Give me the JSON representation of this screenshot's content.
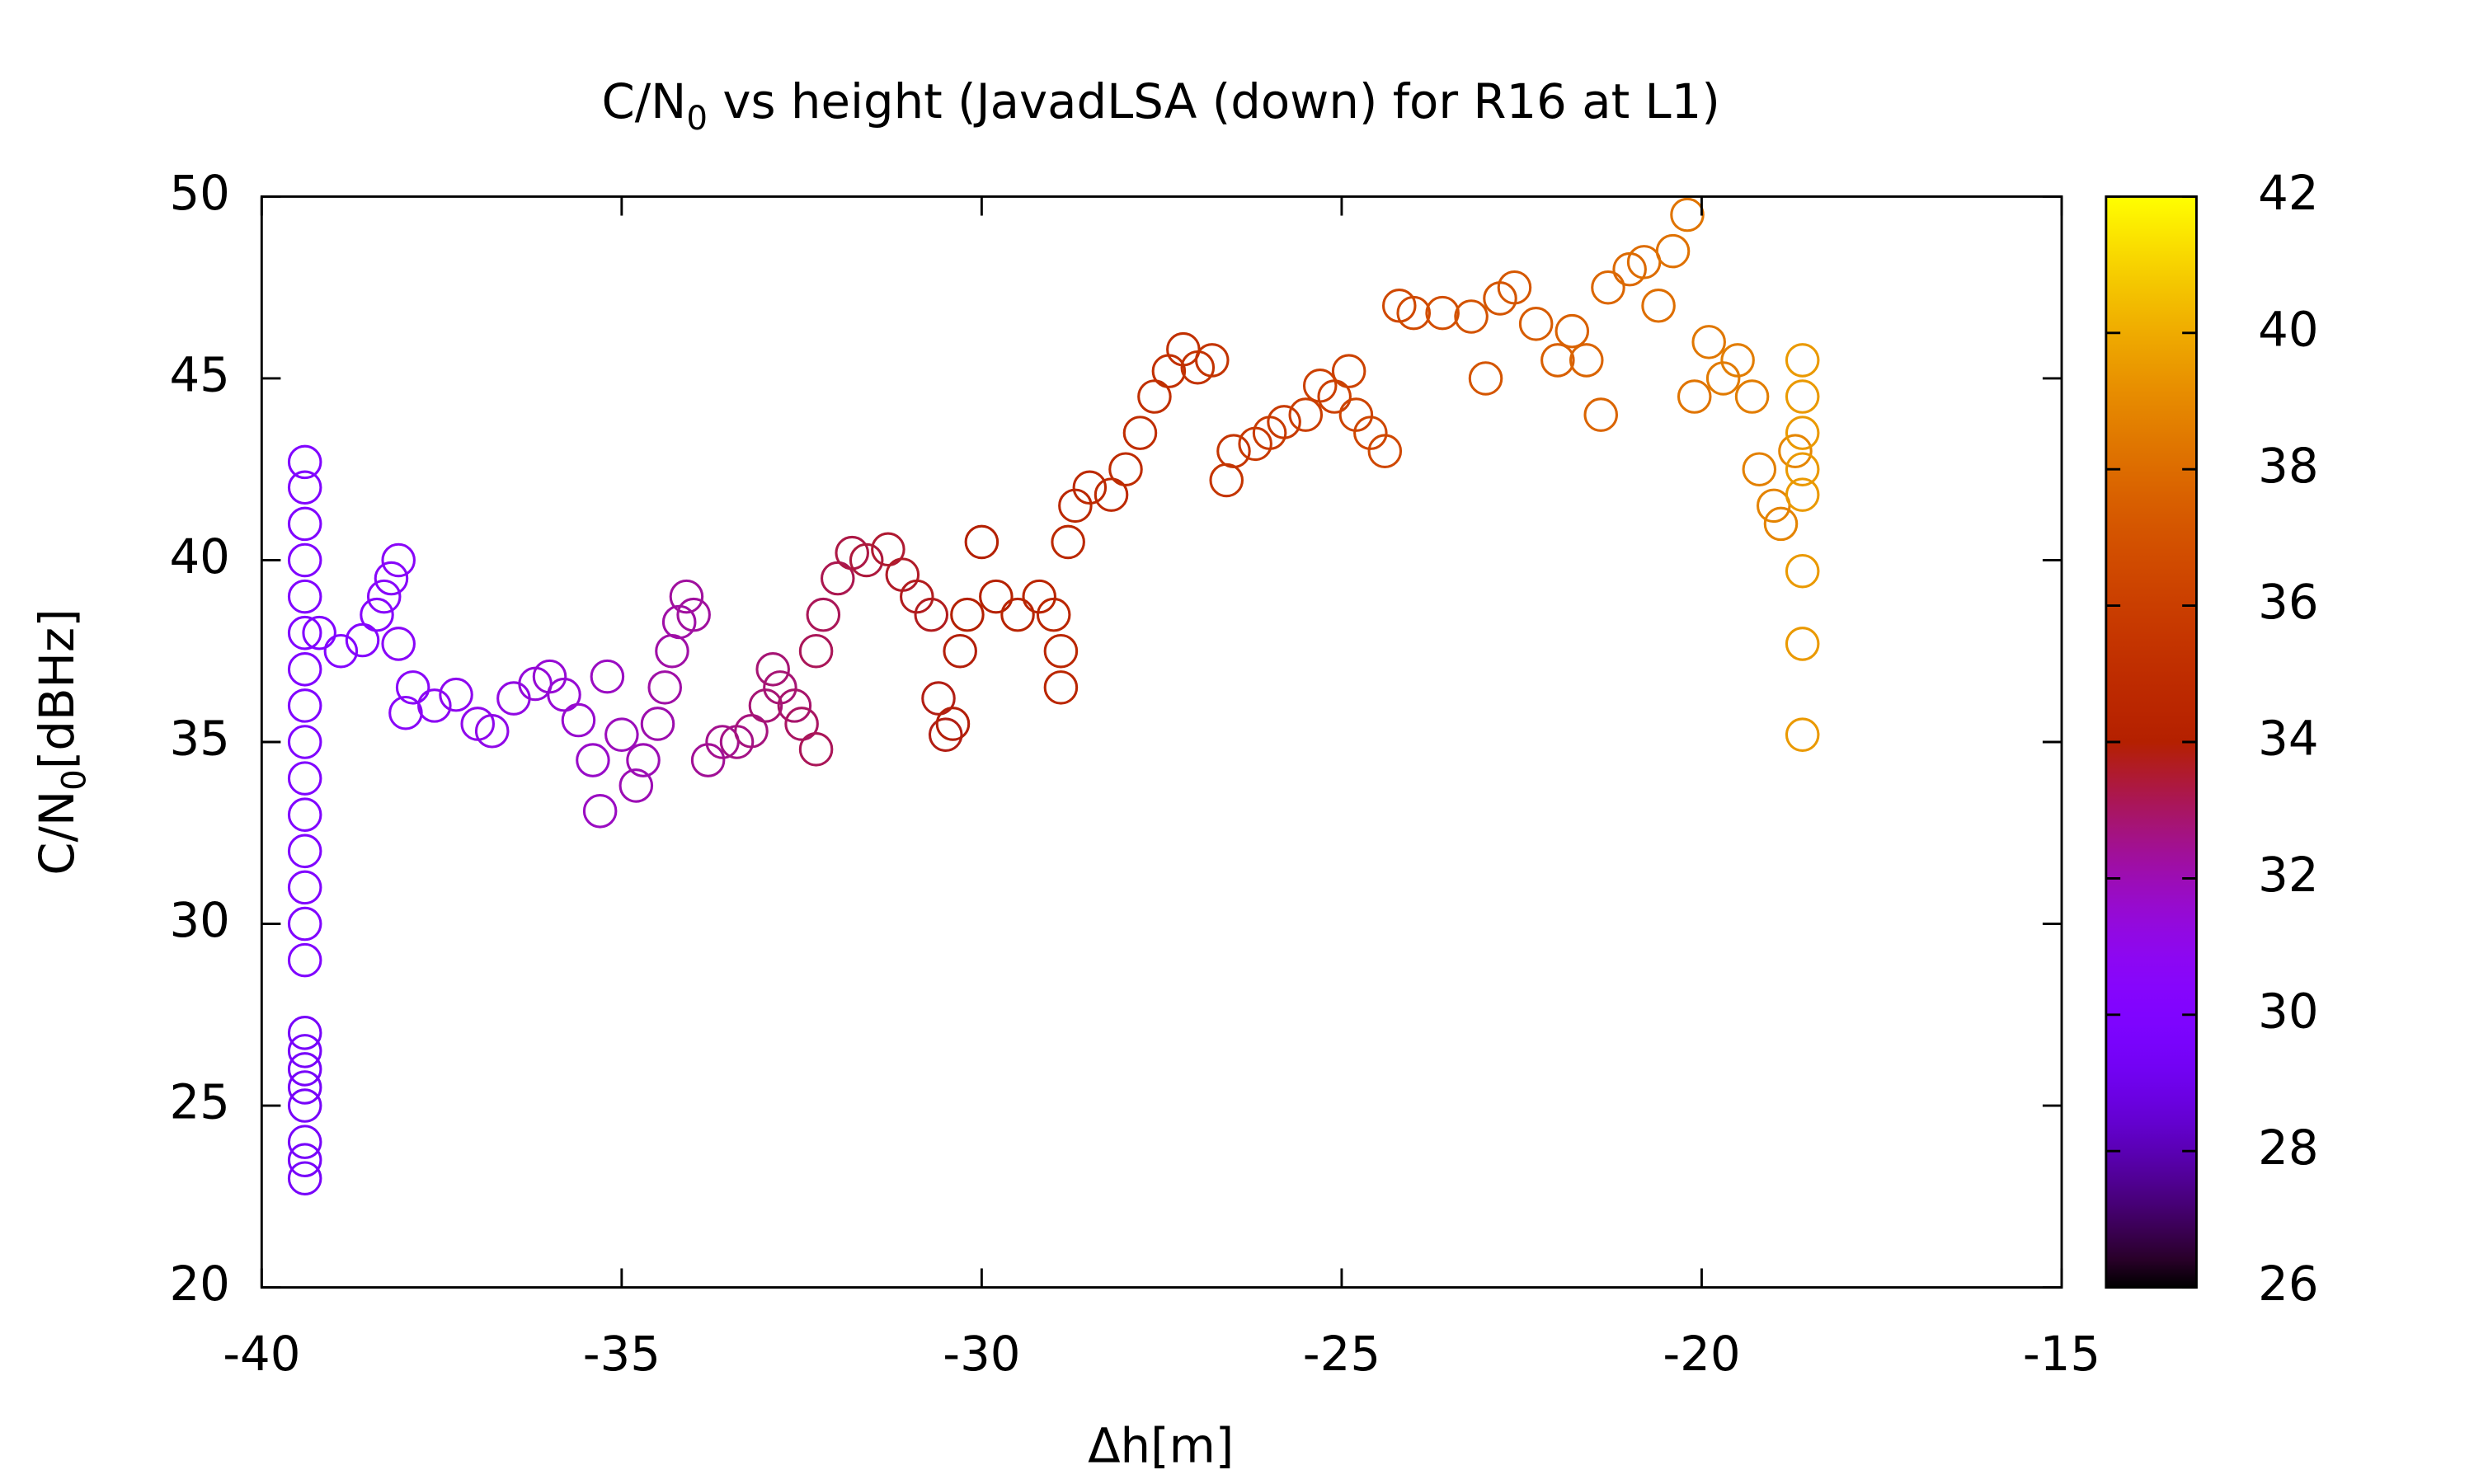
{
  "chart_data": {
    "type": "scatter",
    "title": {
      "main": "C/N",
      "sub": "0",
      "rest": " vs height (JavadLSA (down) for R16 at L1)"
    },
    "y_label": {
      "main": "C/N",
      "sub": "0",
      "rest": "[dBHz]"
    },
    "x_label": "Δh[m]",
    "palette": "gnuplot",
    "marker": "open-circle",
    "xlim": [
      -40,
      -15
    ],
    "xticks": [
      -40,
      -35,
      -30,
      -25,
      -20,
      -15
    ],
    "ylim": [
      20,
      50
    ],
    "yticks": [
      20,
      25,
      30,
      35,
      40,
      45,
      50
    ],
    "cblim": [
      26,
      42
    ],
    "cbticks": [
      26,
      28,
      30,
      32,
      34,
      36,
      38,
      40,
      42
    ],
    "x": [
      -39.4,
      -39.4,
      -39.4,
      -39.4,
      -39.4,
      -39.4,
      -39.4,
      -39.4,
      -39.4,
      -39.4,
      -39.4,
      -39.4,
      -39.4,
      -39.4,
      -39.4,
      -39.4,
      -39.4,
      -39.4,
      -39.4,
      -39.4,
      -39.4,
      -39.4,
      -39.4,
      -39.2,
      -38.9,
      -38.6,
      -38.4,
      -38.3,
      -38.2,
      -38.1,
      -38.1,
      -37.9,
      -38,
      -37.6,
      -37.3,
      -37,
      -36.8,
      -36.5,
      -36.2,
      -36,
      -35.8,
      -35.6,
      -35.4,
      -35.3,
      -35.2,
      -35,
      -34.8,
      -34.7,
      -34.5,
      -34.4,
      -34.3,
      -34.2,
      -34.1,
      -34,
      -33.8,
      -33.6,
      -33.4,
      -33.2,
      -33,
      -32.9,
      -32.8,
      -32.6,
      -32.5,
      -32.3,
      -32.3,
      -32.2,
      -32,
      -31.8,
      -31.6,
      -31.3,
      -31.1,
      -30.9,
      -30.7,
      -30.6,
      -30.5,
      -30.4,
      -30.3,
      -30.2,
      -30,
      -29.8,
      -29.5,
      -29.2,
      -29,
      -28.9,
      -28.9,
      -28.8,
      -28.7,
      -28.5,
      -28.2,
      -28,
      -27.8,
      -27.6,
      -27.4,
      -27.2,
      -27,
      -26.8,
      -26.6,
      -26.5,
      -26.2,
      -26,
      -25.8,
      -25.5,
      -25.3,
      -25.1,
      -24.9,
      -24.8,
      -24.6,
      -24.4,
      -24.2,
      -24,
      -23.6,
      -23.2,
      -23,
      -22.8,
      -22.6,
      -22.3,
      -22,
      -21.8,
      -21.6,
      -21.4,
      -21.3,
      -21,
      -20.8,
      -20.6,
      -20.4,
      -20.2,
      -20.1,
      -19.9,
      -19.7,
      -19.5,
      -19.3,
      -19.2,
      -19,
      -18.9,
      -18.7,
      -18.6,
      -18.6,
      -18.6,
      -18.6,
      -18.6,
      -18.6,
      -18.6,
      -18.6
    ],
    "y": [
      23,
      23.5,
      24,
      25,
      25.5,
      26,
      26.5,
      27,
      29,
      30,
      31,
      32,
      33,
      34,
      35,
      36,
      37,
      38,
      39,
      40,
      41,
      42,
      42.7,
      38,
      37.5,
      37.8,
      38.5,
      39,
      39.5,
      40,
      37.7,
      36.5,
      35.8,
      36,
      36.3,
      35.5,
      35.3,
      36.2,
      36.6,
      36.8,
      36.3,
      35.6,
      34.5,
      33.1,
      36.8,
      35.2,
      33.8,
      34.5,
      35.5,
      36.5,
      37.5,
      38.3,
      39,
      38.5,
      34.5,
      35,
      35,
      35.3,
      36,
      37,
      36.5,
      36,
      35.5,
      34.8,
      37.5,
      38.5,
      39.5,
      40.2,
      40,
      40.3,
      39.6,
      39,
      38.5,
      36.2,
      35.2,
      35.5,
      37.5,
      38.5,
      40.5,
      39,
      38.5,
      39,
      38.5,
      37.5,
      36.5,
      40.5,
      41.5,
      42,
      41.8,
      42.5,
      43.5,
      44.5,
      45.2,
      45.8,
      45.3,
      45.5,
      42.2,
      43,
      43.2,
      43.5,
      43.8,
      44,
      44.8,
      44.5,
      45.2,
      44,
      43.5,
      43,
      47,
      46.8,
      46.8,
      46.7,
      45,
      47.2,
      47.5,
      46.5,
      45.5,
      46.3,
      45.5,
      44,
      47.5,
      48,
      48.2,
      47,
      48.5,
      49.5,
      44.5,
      46,
      45,
      45.5,
      44.5,
      42.5,
      41.5,
      41,
      43,
      45.5,
      44.5,
      43.5,
      42.5,
      41.8,
      39.7,
      37.7,
      35.2
    ],
    "color_values": [
      29.5,
      29.5,
      29.5,
      29.5,
      29.5,
      29.5,
      29.5,
      29.5,
      30,
      30,
      30,
      30,
      30,
      30,
      30,
      30,
      30,
      30,
      30,
      30,
      30,
      30,
      30,
      30.1,
      30.2,
      30.3,
      30.4,
      30.5,
      30.5,
      30.6,
      30.6,
      30.6,
      30.6,
      30.8,
      30.9,
      31,
      31.1,
      31.2,
      31.4,
      31.5,
      31.5,
      31.6,
      31.7,
      31.8,
      31.8,
      31.9,
      32,
      32,
      32.1,
      32.2,
      32.2,
      32.2,
      32.3,
      32.3,
      32.4,
      32.5,
      32.6,
      32.7,
      32.8,
      32.8,
      32.8,
      32.9,
      33,
      33.1,
      33.1,
      33.1,
      33.2,
      33.3,
      33.4,
      33.5,
      33.6,
      33.7,
      33.7,
      33.8,
      33.8,
      33.9,
      33.9,
      34,
      34,
      34.1,
      34.3,
      34.4,
      34.5,
      34.5,
      34.5,
      34.6,
      34.6,
      34.7,
      34.8,
      34.9,
      35,
      35.1,
      35.2,
      35.2,
      35.3,
      35.4,
      35.5,
      35.5,
      35.7,
      35.8,
      35.8,
      36,
      36.1,
      36.1,
      36.2,
      36.3,
      36.4,
      36.5,
      36.5,
      36.6,
      36.8,
      37,
      37.1,
      37.1,
      37.2,
      37.4,
      37.5,
      37.6,
      37.7,
      37.7,
      37.8,
      37.9,
      38,
      38.1,
      38.2,
      38.3,
      38.3,
      38.4,
      38.5,
      38.6,
      38.6,
      38.7,
      38.8,
      38.8,
      38.9,
      39.5,
      39.5,
      39.5,
      39.5,
      39.5,
      39.5,
      39.5,
      39.5
    ]
  }
}
